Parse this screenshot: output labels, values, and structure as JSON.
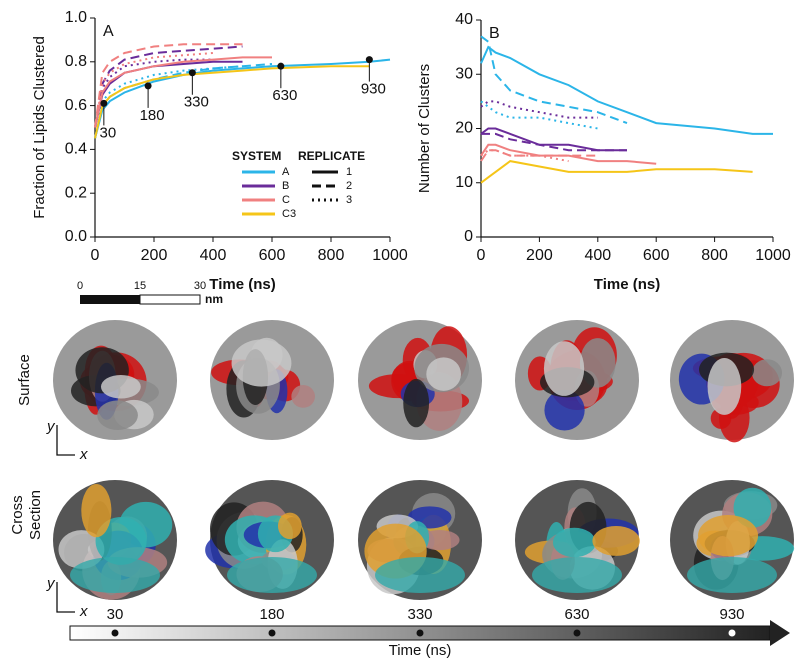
{
  "chart_data": [
    {
      "type": "line",
      "label": "A",
      "xlabel": "Time (ns)",
      "ylabel": "Fraction of Lipids Clustered",
      "x": [
        0,
        25,
        50,
        100,
        200,
        300,
        400,
        500,
        600,
        800,
        930,
        1000
      ],
      "xlim": [
        0,
        1000
      ],
      "xticks": [
        0,
        200,
        400,
        600,
        800,
        1000
      ],
      "ylim": [
        0,
        1.0
      ],
      "yticks": [
        {
          "value": 0,
          "label": "0.0"
        },
        0.2,
        0.4,
        0.6,
        0.8,
        {
          "value": 1.0,
          "label": "1.0"
        }
      ],
      "legend": {
        "system_title": "SYSTEM",
        "replicate_title": "REPLICATE"
      },
      "replicates": [
        {
          "name": "1",
          "dash": "solid"
        },
        {
          "name": "2",
          "dash": "dashed"
        },
        {
          "name": "3",
          "dash": "dotted"
        }
      ],
      "systems": [
        {
          "name": "A",
          "color": "#2bb5e8",
          "series": [
            {
              "values": [
                0.45,
                0.58,
                0.62,
                0.66,
                0.71,
                0.74,
                0.76,
                0.77,
                0.78,
                0.79,
                0.8,
                0.81
              ]
            },
            {
              "values": [
                0.45,
                0.6,
                0.64,
                0.68,
                0.72,
                0.75,
                0.77,
                0.78,
                0.79,
                null,
                null,
                null
              ]
            },
            {
              "values": [
                0.45,
                0.62,
                0.66,
                0.7,
                0.74,
                0.76,
                0.77,
                0.78,
                null,
                null,
                null,
                null
              ]
            }
          ]
        },
        {
          "name": "B",
          "color": "#6a2c9a",
          "series": [
            {
              "values": [
                0.5,
                0.65,
                0.7,
                0.75,
                0.78,
                0.79,
                0.8,
                0.8,
                null,
                null,
                null,
                null
              ]
            },
            {
              "values": [
                0.5,
                0.7,
                0.76,
                0.81,
                0.84,
                0.85,
                0.86,
                0.87,
                null,
                null,
                null,
                null
              ]
            },
            {
              "values": [
                0.5,
                0.68,
                0.73,
                0.78,
                0.8,
                0.81,
                0.81,
                null,
                null,
                null,
                null,
                null
              ]
            }
          ]
        },
        {
          "name": "C",
          "color": "#f08080",
          "series": [
            {
              "values": [
                0.5,
                0.66,
                0.71,
                0.75,
                0.78,
                0.8,
                0.81,
                0.82,
                0.82,
                null,
                null,
                null
              ]
            },
            {
              "values": [
                0.5,
                0.75,
                0.8,
                0.84,
                0.87,
                0.88,
                0.88,
                0.88,
                null,
                null,
                null,
                null
              ]
            },
            {
              "values": [
                0.5,
                0.7,
                0.75,
                0.79,
                0.82,
                0.83,
                0.84,
                null,
                null,
                null,
                null,
                null
              ]
            }
          ]
        },
        {
          "name": "C3",
          "color": "#f5c518",
          "series": [
            {
              "values": [
                0.45,
                0.6,
                0.64,
                0.68,
                0.72,
                0.74,
                0.75,
                0.76,
                0.77,
                0.78,
                0.78,
                null
              ]
            }
          ]
        }
      ],
      "markers": {
        "x": [
          30,
          180,
          330,
          630,
          930
        ],
        "y": [
          0.61,
          0.69,
          0.75,
          0.78,
          0.81
        ]
      }
    },
    {
      "type": "line",
      "label": "B",
      "xlabel": "Time (ns)",
      "ylabel": "Number of Clusters",
      "x": [
        0,
        25,
        50,
        100,
        200,
        300,
        400,
        500,
        600,
        800,
        930,
        1000
      ],
      "xlim": [
        0,
        1000
      ],
      "xticks": [
        0,
        200,
        400,
        600,
        800,
        1000
      ],
      "ylim": [
        0,
        40
      ],
      "yticks": [
        0,
        10,
        20,
        30,
        40
      ],
      "replicates": [
        {
          "dash": "solid"
        },
        {
          "dash": "dashed"
        },
        {
          "dash": "dotted"
        }
      ],
      "systems": [
        {
          "color": "#2bb5e8",
          "series": [
            {
              "values": [
                32,
                35,
                34,
                33,
                30,
                28,
                25,
                23,
                21,
                20,
                19,
                19
              ]
            },
            {
              "values": [
                37,
                36,
                30,
                27,
                25,
                24,
                23,
                21,
                null,
                null,
                null,
                null
              ]
            },
            {
              "values": [
                25,
                24,
                23,
                22,
                22,
                21,
                20,
                null,
                null,
                null,
                null,
                null
              ]
            }
          ]
        },
        {
          "color": "#6a2c9a",
          "series": [
            {
              "values": [
                19,
                20,
                20,
                19,
                17,
                17,
                16,
                16,
                null,
                null,
                null,
                null
              ]
            },
            {
              "values": [
                19,
                19,
                19,
                18,
                17,
                16,
                16,
                16,
                null,
                null,
                null,
                null
              ]
            },
            {
              "values": [
                24,
                25,
                25,
                24,
                23,
                22,
                22,
                null,
                null,
                null,
                null,
                null
              ]
            }
          ]
        },
        {
          "color": "#f08080",
          "series": [
            {
              "values": [
                15,
                17,
                17,
                16,
                15,
                15,
                14,
                14,
                13.5,
                null,
                null,
                null
              ]
            },
            {
              "values": [
                14,
                16,
                16,
                15,
                15,
                15,
                15,
                null,
                null,
                null,
                null,
                null
              ]
            },
            {
              "values": [
                15,
                16,
                16,
                15,
                15,
                14,
                null,
                null,
                null,
                null,
                null,
                null
              ]
            }
          ]
        },
        {
          "color": "#f5c518",
          "series": [
            {
              "values": [
                10,
                11,
                12,
                14,
                13,
                12,
                12,
                12,
                12.5,
                12.5,
                12,
                null
              ]
            }
          ]
        }
      ]
    }
  ],
  "scale_bar": {
    "ticks": [
      0,
      15,
      30
    ],
    "unit": "nm"
  },
  "rows": {
    "surface": "Surface",
    "cross_section": [
      "Cross",
      "Section"
    ],
    "axis_y": "y",
    "axis_x": "x"
  },
  "timeline": {
    "ticks": [
      30,
      180,
      330,
      630,
      930
    ],
    "label": "Time (ns)"
  }
}
